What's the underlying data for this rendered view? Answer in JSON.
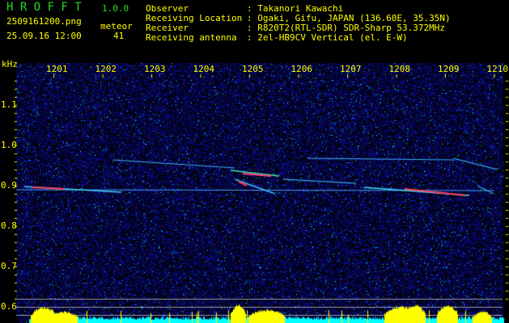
{
  "header": {
    "app_title": "H R O F F T",
    "version": "1.0.0",
    "filename": "2509161200.png",
    "datetime": "25.09.16 12:00",
    "meteor_label": "meteor",
    "meteor_count": "41",
    "info": [
      {
        "label": "Observer",
        "value": ": Takanori Kawachi"
      },
      {
        "label": "Receiving Location",
        "value": ": Ogaki, Gifu, JAPAN (136.60E, 35.35N)"
      },
      {
        "label": "Receiver",
        "value": ": R820T2(RTL-SDR) SDR-Sharp 53.372MHz"
      },
      {
        "label": "Receiving antenna",
        "value": ": 2el-HB9CV Vertical (el. E-W)"
      }
    ]
  },
  "spectrogram": {
    "y_unit": "kHz",
    "y_ticks": [
      "1.1",
      "1.0",
      "0.9",
      "0.8",
      "0.7",
      "0.6"
    ],
    "x_ticks": [
      "1201",
      "1202",
      "1203",
      "1204",
      "1205",
      "1206",
      "1207",
      "1208",
      "1209",
      "1210"
    ],
    "colors": {
      "background": "#000000",
      "noise": "#1a1aff",
      "text": "#ffff00",
      "title": "#22dd22",
      "activity": "#ffff00",
      "baseline": "#00ffff"
    }
  }
}
